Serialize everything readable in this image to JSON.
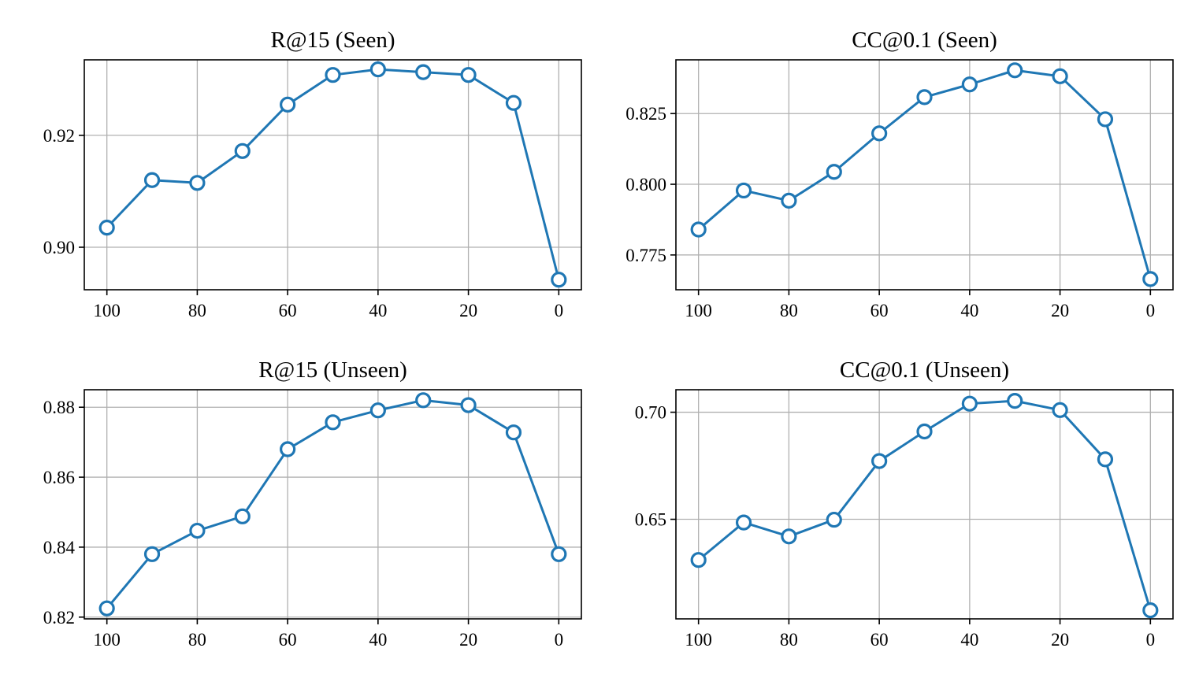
{
  "chart_data": [
    {
      "type": "line",
      "title": "R@15 (Seen)",
      "xlabel": "",
      "ylabel": "",
      "x": [
        100,
        90,
        80,
        70,
        60,
        50,
        40,
        30,
        20,
        10,
        0
      ],
      "xlim": [
        105,
        -5
      ],
      "xticks": [
        100,
        80,
        60,
        40,
        20,
        0
      ],
      "ylim": [
        0.8924,
        0.9335
      ],
      "yticks": [
        0.9,
        0.92
      ],
      "ytick_labels": [
        "0.90",
        "0.92"
      ],
      "grid": true,
      "color": "#1f77b4",
      "series": [
        {
          "values": [
            0.9035,
            0.912,
            0.9115,
            0.9172,
            0.9255,
            0.9308,
            0.9318,
            0.9313,
            0.9308,
            0.9258,
            0.8942
          ]
        }
      ]
    },
    {
      "type": "line",
      "title": "CC@0.1 (Seen)",
      "xlabel": "",
      "ylabel": "",
      "x": [
        100,
        90,
        80,
        70,
        60,
        50,
        40,
        30,
        20,
        10,
        0
      ],
      "xlim": [
        105,
        -5
      ],
      "xticks": [
        100,
        80,
        60,
        40,
        20,
        0
      ],
      "ylim": [
        0.7627,
        0.844
      ],
      "yticks": [
        0.775,
        0.8,
        0.825
      ],
      "ytick_labels": [
        "0.775",
        "0.800",
        "0.825"
      ],
      "grid": true,
      "color": "#1f77b4",
      "series": [
        {
          "values": [
            0.784,
            0.7978,
            0.7942,
            0.8044,
            0.818,
            0.8308,
            0.8353,
            0.8403,
            0.8382,
            0.823,
            0.7665
          ]
        }
      ]
    },
    {
      "type": "line",
      "title": "R@15 (Unseen)",
      "xlabel": "",
      "ylabel": "",
      "x": [
        100,
        90,
        80,
        70,
        60,
        50,
        40,
        30,
        20,
        10,
        0
      ],
      "xlim": [
        105,
        -5
      ],
      "xticks": [
        100,
        80,
        60,
        40,
        20,
        0
      ],
      "ylim": [
        0.8195,
        0.885
      ],
      "yticks": [
        0.82,
        0.84,
        0.86,
        0.88
      ],
      "ytick_labels": [
        "0.82",
        "0.84",
        "0.86",
        "0.88"
      ],
      "grid": true,
      "color": "#1f77b4",
      "series": [
        {
          "values": [
            0.8225,
            0.838,
            0.8447,
            0.8488,
            0.868,
            0.8757,
            0.8791,
            0.882,
            0.8806,
            0.8728,
            0.838
          ]
        }
      ]
    },
    {
      "type": "line",
      "title": "CC@0.1 (Unseen)",
      "xlabel": "",
      "ylabel": "",
      "x": [
        100,
        90,
        80,
        70,
        60,
        50,
        40,
        30,
        20,
        10,
        0
      ],
      "xlim": [
        105,
        -5
      ],
      "xticks": [
        100,
        80,
        60,
        40,
        20,
        0
      ],
      "ylim": [
        0.6035,
        0.7105
      ],
      "yticks": [
        0.65,
        0.7
      ],
      "ytick_labels": [
        "0.65",
        "0.70"
      ],
      "grid": true,
      "color": "#1f77b4",
      "series": [
        {
          "values": [
            0.631,
            0.6485,
            0.642,
            0.6498,
            0.6772,
            0.691,
            0.704,
            0.7053,
            0.701,
            0.678,
            0.6075
          ]
        }
      ]
    }
  ]
}
